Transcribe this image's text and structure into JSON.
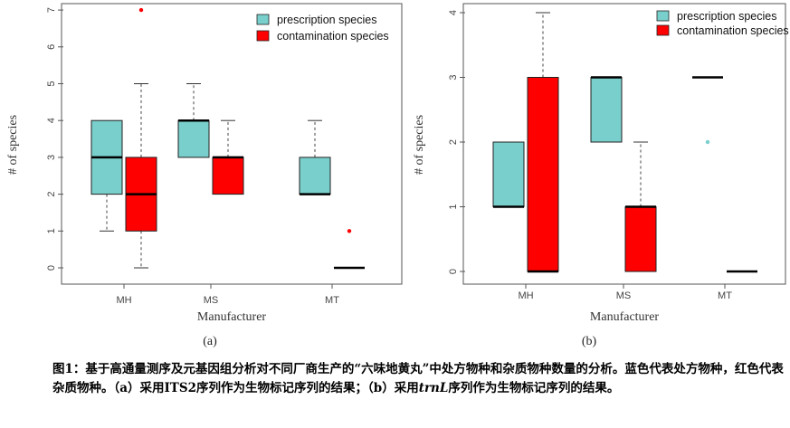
{
  "chart_data": [
    {
      "type": "box",
      "panel_label": "(a)",
      "xlabel": "Manufacturer",
      "ylabel": "# of species",
      "categories": [
        "MH",
        "MS",
        "MT"
      ],
      "ylim": [
        0,
        7
      ],
      "yticks": [
        0,
        1,
        2,
        3,
        4,
        5,
        6,
        7
      ],
      "grid": false,
      "legend_position": "top-right",
      "series": [
        {
          "name": "prescription species",
          "color": "#79cfcc",
          "boxes": [
            {
              "min": 1,
              "q1": 2,
              "median": 3,
              "q3": 4,
              "max": 4,
              "outliers": []
            },
            {
              "min": 3,
              "q1": 3,
              "median": 4,
              "q3": 4,
              "max": 5,
              "outliers": []
            },
            {
              "min": 2,
              "q1": 2,
              "median": 2,
              "q3": 3,
              "max": 4,
              "outliers": []
            }
          ]
        },
        {
          "name": "contamination species",
          "color": "#ff0000",
          "boxes": [
            {
              "min": 0,
              "q1": 1,
              "median": 2,
              "q3": 3,
              "max": 5,
              "outliers": [
                7
              ]
            },
            {
              "min": 2,
              "q1": 2,
              "median": 3,
              "q3": 3,
              "max": 4,
              "outliers": []
            },
            {
              "min": 0,
              "q1": 0,
              "median": 0,
              "q3": 0,
              "max": 0,
              "outliers": [
                1
              ]
            }
          ]
        }
      ]
    },
    {
      "type": "box",
      "panel_label": "(b)",
      "xlabel": "Manufacturer",
      "ylabel": "# of species",
      "categories": [
        "MH",
        "MS",
        "MT"
      ],
      "ylim": [
        0,
        4
      ],
      "yticks": [
        0,
        1,
        2,
        3,
        4
      ],
      "grid": false,
      "legend_position": "top-right",
      "series": [
        {
          "name": "prescription species",
          "color": "#79cfcc",
          "boxes": [
            {
              "min": 1,
              "q1": 1,
              "median": 1,
              "q3": 2,
              "max": 2,
              "outliers": []
            },
            {
              "min": 2,
              "q1": 2,
              "median": 3,
              "q3": 3,
              "max": 3,
              "outliers": []
            },
            {
              "min": 3,
              "q1": 3,
              "median": 3,
              "q3": 3,
              "max": 3,
              "outliers": [
                2
              ]
            }
          ]
        },
        {
          "name": "contamination species",
          "color": "#ff0000",
          "boxes": [
            {
              "min": 0,
              "q1": 0,
              "median": 0,
              "q3": 3,
              "max": 4,
              "outliers": []
            },
            {
              "min": 0,
              "q1": 0,
              "median": 1,
              "q3": 1,
              "max": 2,
              "outliers": []
            },
            {
              "min": 0,
              "q1": 0,
              "median": 0,
              "q3": 0,
              "max": 0,
              "outliers": []
            }
          ]
        }
      ]
    }
  ],
  "caption": {
    "part1": "图1：基于高通量测序及元基因组分析对不同厂商生产的“六味地黄丸”中处方物种和杂质物种数量的分析。蓝色代表处方物种，红色代表杂质物种。（a）采用ITS2序列作为生物标记序列的结果；（b）采用",
    "italic": "trnL",
    "part2": "序列作为生物标记序列的结果。"
  }
}
